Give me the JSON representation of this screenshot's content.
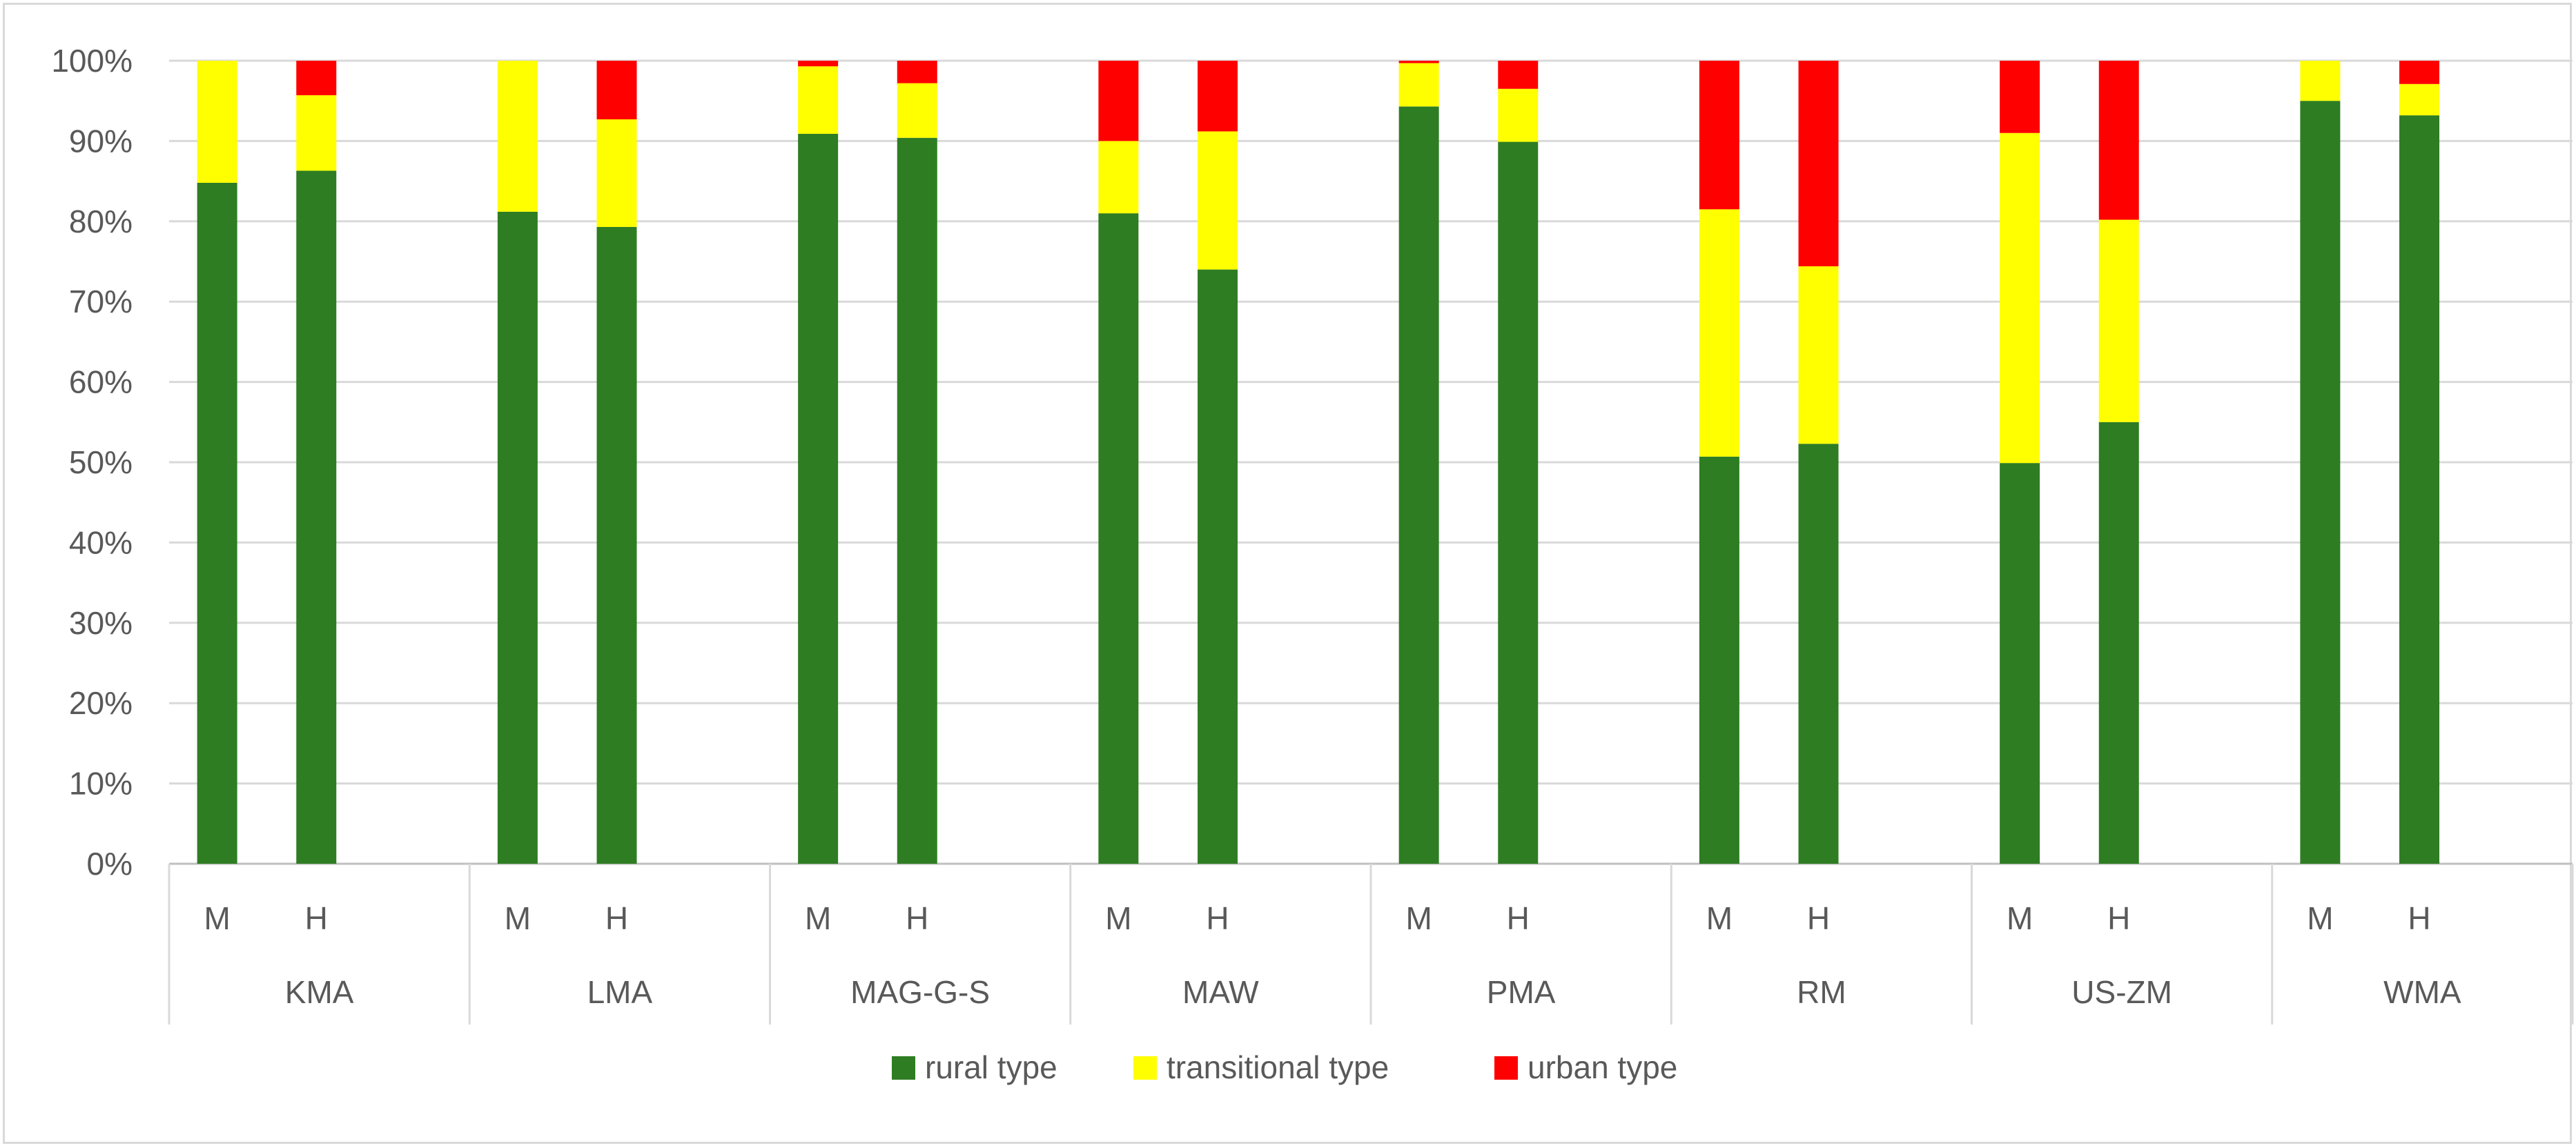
{
  "chart_data": {
    "type": "bar",
    "stacked": true,
    "percent": true,
    "groups": [
      "KMA",
      "LMA",
      "MAG-G-S",
      "MAW",
      "PMA",
      "RM",
      "US-ZM",
      "WMA"
    ],
    "subcategories": [
      "M",
      "H"
    ],
    "series": [
      {
        "name": "rural type",
        "color": "#2e7d23",
        "values": [
          84.8,
          86.3,
          81.2,
          79.3,
          90.9,
          90.4,
          81.0,
          74.0,
          94.3,
          89.9,
          50.7,
          52.3,
          49.9,
          55.0,
          95.0,
          93.2
        ]
      },
      {
        "name": "transitional type",
        "color": "#ffff00",
        "values": [
          15.2,
          9.4,
          18.8,
          13.4,
          8.4,
          6.8,
          9.0,
          17.2,
          5.4,
          6.6,
          30.8,
          22.1,
          41.1,
          25.2,
          5.0,
          3.9
        ]
      },
      {
        "name": "urban type",
        "color": "#ff0000",
        "values": [
          0.0,
          4.3,
          0.0,
          7.3,
          0.7,
          2.8,
          10.0,
          8.8,
          0.3,
          3.5,
          18.5,
          25.6,
          9.0,
          19.8,
          0.0,
          2.9
        ]
      }
    ],
    "yticks": [
      "0%",
      "10%",
      "20%",
      "30%",
      "40%",
      "50%",
      "60%",
      "70%",
      "80%",
      "90%",
      "100%"
    ],
    "ylim": [
      0,
      100
    ],
    "legend_position": "bottom",
    "grid": true,
    "title": "",
    "xlabel": "",
    "ylabel": ""
  }
}
